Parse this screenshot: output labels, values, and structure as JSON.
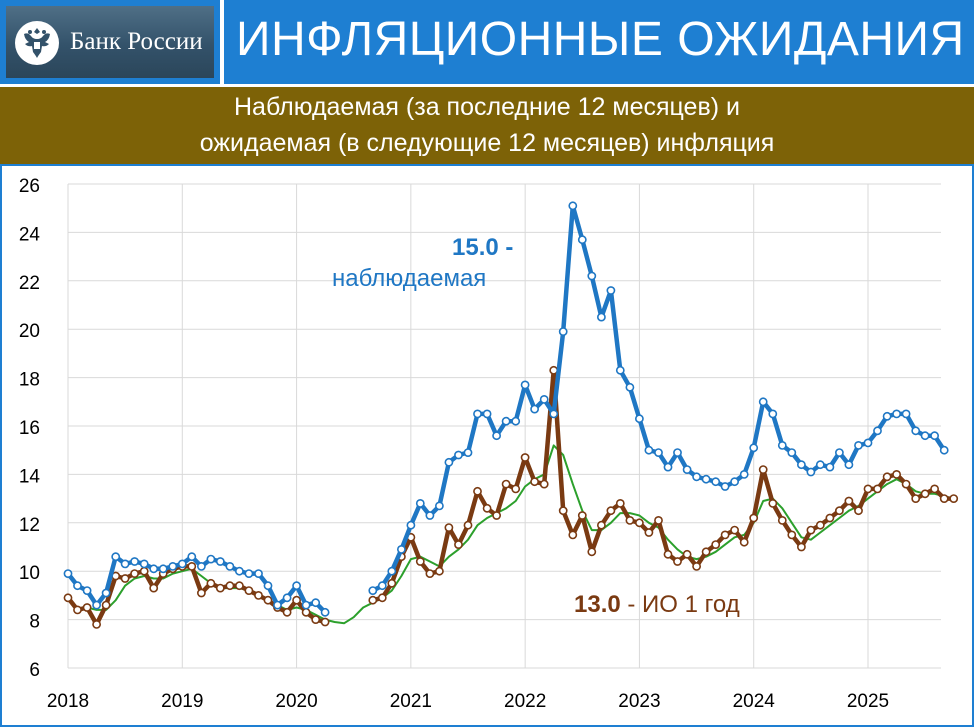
{
  "header": {
    "logo_text": "Банк России",
    "title": "ИНФЛЯЦИОННЫЕ ОЖИДАНИЯ",
    "subtitle_line1": "Наблюдаемая (за последние 12 месяцев) и",
    "subtitle_line2": "ожидаемая (в следующие 12 месяцев) инфляция"
  },
  "colors": {
    "header_bg": "#1e7fd2",
    "subtitle_bg": "#7d6207",
    "observed": "#1f77c4",
    "expected": "#7a3a12",
    "expected_smooth": "#2ca02c"
  },
  "icons": {
    "logo": "double-headed-eagle-icon"
  },
  "chart_data": {
    "type": "line",
    "x_ticks": [
      "2018",
      "2019",
      "2020",
      "2021",
      "2022",
      "2023",
      "2024",
      "2025"
    ],
    "y_ticks": [
      "6",
      "8",
      "10",
      "12",
      "14",
      "16",
      "18",
      "20",
      "22",
      "24",
      "26"
    ],
    "xlim": [
      2018.0,
      2025.75
    ],
    "ylim": [
      6,
      26
    ],
    "grid": true,
    "annotations": {
      "observed_value": "15.0",
      "observed_dash": " -",
      "observed_label": "наблюдаемая",
      "expected_value": "13.0",
      "expected_label": " - ИО 1 год"
    },
    "series": [
      {
        "key": "observed",
        "markers": true,
        "points": [
          [
            2018.0,
            9.9
          ],
          [
            2018.083,
            9.4
          ],
          [
            2018.167,
            9.2
          ],
          [
            2018.25,
            8.6
          ],
          [
            2018.333,
            9.1
          ],
          [
            2018.417,
            10.6
          ],
          [
            2018.5,
            10.3
          ],
          [
            2018.583,
            10.4
          ],
          [
            2018.667,
            10.3
          ],
          [
            2018.75,
            10.1
          ],
          [
            2018.833,
            10.1
          ],
          [
            2018.917,
            10.2
          ],
          [
            2019.0,
            10.3
          ],
          [
            2019.083,
            10.6
          ],
          [
            2019.167,
            10.2
          ],
          [
            2019.25,
            10.5
          ],
          [
            2019.333,
            10.4
          ],
          [
            2019.417,
            10.2
          ],
          [
            2019.5,
            10.0
          ],
          [
            2019.583,
            9.9
          ],
          [
            2019.667,
            9.9
          ],
          [
            2019.75,
            9.4
          ],
          [
            2019.833,
            8.6
          ],
          [
            2019.917,
            8.9
          ],
          [
            2020.0,
            9.4
          ],
          [
            2020.083,
            8.6
          ],
          [
            2020.167,
            8.7
          ],
          [
            2020.25,
            8.3
          ],
          [
            2020.667,
            9.2
          ],
          [
            2020.75,
            9.4
          ],
          [
            2020.833,
            10.0
          ],
          [
            2020.917,
            10.9
          ],
          [
            2021.0,
            11.9
          ],
          [
            2021.083,
            12.8
          ],
          [
            2021.167,
            12.3
          ],
          [
            2021.25,
            12.7
          ],
          [
            2021.333,
            14.5
          ],
          [
            2021.417,
            14.8
          ],
          [
            2021.5,
            14.9
          ],
          [
            2021.583,
            16.5
          ],
          [
            2021.667,
            16.5
          ],
          [
            2021.75,
            15.6
          ],
          [
            2021.833,
            16.2
          ],
          [
            2021.917,
            16.2
          ],
          [
            2022.0,
            17.7
          ],
          [
            2022.083,
            16.7
          ],
          [
            2022.167,
            17.1
          ],
          [
            2022.25,
            16.5
          ],
          [
            2022.333,
            19.9
          ],
          [
            2022.417,
            25.1
          ],
          [
            2022.5,
            23.7
          ],
          [
            2022.583,
            22.2
          ],
          [
            2022.667,
            20.5
          ],
          [
            2022.75,
            21.6
          ],
          [
            2022.833,
            18.3
          ],
          [
            2022.917,
            17.6
          ],
          [
            2023.0,
            16.3
          ],
          [
            2023.083,
            15.0
          ],
          [
            2023.167,
            14.9
          ],
          [
            2023.25,
            14.3
          ],
          [
            2023.333,
            14.9
          ],
          [
            2023.417,
            14.2
          ],
          [
            2023.5,
            13.9
          ],
          [
            2023.583,
            13.8
          ],
          [
            2023.667,
            13.7
          ],
          [
            2023.75,
            13.5
          ],
          [
            2023.833,
            13.7
          ],
          [
            2023.917,
            14.0
          ],
          [
            2024.0,
            15.1
          ],
          [
            2024.083,
            17.0
          ],
          [
            2024.167,
            16.5
          ],
          [
            2024.25,
            15.2
          ],
          [
            2024.333,
            14.9
          ],
          [
            2024.417,
            14.4
          ],
          [
            2024.5,
            14.1
          ],
          [
            2024.583,
            14.4
          ],
          [
            2024.667,
            14.3
          ],
          [
            2024.75,
            14.9
          ],
          [
            2024.833,
            14.4
          ],
          [
            2024.917,
            15.2
          ],
          [
            2025.0,
            15.3
          ],
          [
            2025.083,
            15.8
          ],
          [
            2025.167,
            16.4
          ],
          [
            2025.25,
            16.5
          ],
          [
            2025.333,
            16.5
          ],
          [
            2025.417,
            15.8
          ],
          [
            2025.5,
            15.6
          ],
          [
            2025.583,
            15.6
          ],
          [
            2025.667,
            15.0
          ]
        ]
      },
      {
        "key": "expected",
        "markers": true,
        "points": [
          [
            2018.0,
            8.9
          ],
          [
            2018.083,
            8.4
          ],
          [
            2018.167,
            8.5
          ],
          [
            2018.25,
            7.8
          ],
          [
            2018.333,
            8.6
          ],
          [
            2018.417,
            9.8
          ],
          [
            2018.5,
            9.7
          ],
          [
            2018.583,
            9.9
          ],
          [
            2018.667,
            10.0
          ],
          [
            2018.75,
            9.3
          ],
          [
            2018.833,
            9.9
          ],
          [
            2018.917,
            10.1
          ],
          [
            2019.0,
            10.2
          ],
          [
            2019.083,
            10.2
          ],
          [
            2019.167,
            9.1
          ],
          [
            2019.25,
            9.5
          ],
          [
            2019.333,
            9.3
          ],
          [
            2019.417,
            9.4
          ],
          [
            2019.5,
            9.4
          ],
          [
            2019.583,
            9.2
          ],
          [
            2019.667,
            9.0
          ],
          [
            2019.75,
            8.8
          ],
          [
            2019.833,
            8.5
          ],
          [
            2019.917,
            8.3
          ],
          [
            2020.0,
            8.8
          ],
          [
            2020.083,
            8.3
          ],
          [
            2020.167,
            8.0
          ],
          [
            2020.25,
            7.9
          ],
          [
            2020.667,
            8.8
          ],
          [
            2020.75,
            8.9
          ],
          [
            2020.833,
            9.5
          ],
          [
            2020.917,
            10.6
          ],
          [
            2021.0,
            11.4
          ],
          [
            2021.083,
            10.4
          ],
          [
            2021.167,
            9.9
          ],
          [
            2021.25,
            10.0
          ],
          [
            2021.333,
            11.8
          ],
          [
            2021.417,
            11.1
          ],
          [
            2021.5,
            11.9
          ],
          [
            2021.583,
            13.3
          ],
          [
            2021.667,
            12.6
          ],
          [
            2021.75,
            12.3
          ],
          [
            2021.833,
            13.6
          ],
          [
            2021.917,
            13.4
          ],
          [
            2022.0,
            14.7
          ],
          [
            2022.083,
            13.7
          ],
          [
            2022.167,
            13.6
          ],
          [
            2022.25,
            18.3
          ],
          [
            2022.333,
            12.5
          ],
          [
            2022.417,
            11.5
          ],
          [
            2022.5,
            12.3
          ],
          [
            2022.583,
            10.8
          ],
          [
            2022.667,
            11.9
          ],
          [
            2022.75,
            12.5
          ],
          [
            2022.833,
            12.8
          ],
          [
            2022.917,
            12.1
          ],
          [
            2023.0,
            12.0
          ],
          [
            2023.083,
            11.6
          ],
          [
            2023.167,
            12.1
          ],
          [
            2023.25,
            10.7
          ],
          [
            2023.333,
            10.4
          ],
          [
            2023.417,
            10.7
          ],
          [
            2023.5,
            10.2
          ],
          [
            2023.583,
            10.8
          ],
          [
            2023.667,
            11.1
          ],
          [
            2023.75,
            11.5
          ],
          [
            2023.833,
            11.7
          ],
          [
            2023.917,
            11.2
          ],
          [
            2024.0,
            12.2
          ],
          [
            2024.083,
            14.2
          ],
          [
            2024.167,
            12.8
          ],
          [
            2024.25,
            12.1
          ],
          [
            2024.333,
            11.5
          ],
          [
            2024.417,
            11.0
          ],
          [
            2024.5,
            11.7
          ],
          [
            2024.583,
            11.9
          ],
          [
            2024.667,
            12.2
          ],
          [
            2024.75,
            12.5
          ],
          [
            2024.833,
            12.9
          ],
          [
            2024.917,
            12.5
          ],
          [
            2025.0,
            13.4
          ],
          [
            2025.083,
            13.4
          ],
          [
            2025.167,
            13.9
          ],
          [
            2025.25,
            14.0
          ],
          [
            2025.333,
            13.6
          ],
          [
            2025.417,
            13.0
          ],
          [
            2025.5,
            13.2
          ],
          [
            2025.583,
            13.4
          ],
          [
            2025.667,
            13.0
          ],
          [
            2025.75,
            13.0
          ]
        ]
      },
      {
        "key": "expected_smooth",
        "markers": false,
        "points": [
          [
            2018.167,
            8.5
          ],
          [
            2018.25,
            8.4
          ],
          [
            2018.333,
            8.4
          ],
          [
            2018.417,
            8.8
          ],
          [
            2018.5,
            9.4
          ],
          [
            2018.583,
            9.7
          ],
          [
            2018.667,
            9.8
          ],
          [
            2018.75,
            9.7
          ],
          [
            2018.833,
            9.7
          ],
          [
            2018.917,
            9.9
          ],
          [
            2019.0,
            10.0
          ],
          [
            2019.083,
            10.1
          ],
          [
            2019.167,
            9.8
          ],
          [
            2019.25,
            9.5
          ],
          [
            2019.333,
            9.3
          ],
          [
            2019.417,
            9.3
          ],
          [
            2019.5,
            9.3
          ],
          [
            2019.583,
            9.2
          ],
          [
            2019.667,
            9.0
          ],
          [
            2019.75,
            8.8
          ],
          [
            2019.833,
            8.6
          ],
          [
            2019.917,
            8.4
          ],
          [
            2020.0,
            8.5
          ],
          [
            2020.083,
            8.4
          ],
          [
            2020.167,
            8.2
          ],
          [
            2020.25,
            8.0
          ],
          [
            2020.333,
            7.9
          ],
          [
            2020.417,
            7.85
          ],
          [
            2020.5,
            8.1
          ],
          [
            2020.583,
            8.5
          ],
          [
            2020.667,
            8.7
          ],
          [
            2020.75,
            8.9
          ],
          [
            2020.833,
            9.2
          ],
          [
            2020.917,
            9.8
          ],
          [
            2021.0,
            10.5
          ],
          [
            2021.083,
            10.6
          ],
          [
            2021.167,
            10.4
          ],
          [
            2021.25,
            10.2
          ],
          [
            2021.333,
            10.6
          ],
          [
            2021.417,
            10.9
          ],
          [
            2021.5,
            11.3
          ],
          [
            2021.583,
            11.9
          ],
          [
            2021.667,
            12.2
          ],
          [
            2021.75,
            12.4
          ],
          [
            2021.833,
            12.6
          ],
          [
            2021.917,
            12.9
          ],
          [
            2022.0,
            13.5
          ],
          [
            2022.083,
            13.8
          ],
          [
            2022.167,
            14.0
          ],
          [
            2022.25,
            15.2
          ],
          [
            2022.333,
            14.8
          ],
          [
            2022.417,
            13.6
          ],
          [
            2022.5,
            12.5
          ],
          [
            2022.583,
            11.7
          ],
          [
            2022.667,
            11.7
          ],
          [
            2022.75,
            12.0
          ],
          [
            2022.833,
            12.4
          ],
          [
            2022.917,
            12.4
          ],
          [
            2023.0,
            12.3
          ],
          [
            2023.083,
            12.0
          ],
          [
            2023.167,
            11.8
          ],
          [
            2023.25,
            11.3
          ],
          [
            2023.333,
            10.9
          ],
          [
            2023.417,
            10.6
          ],
          [
            2023.5,
            10.5
          ],
          [
            2023.583,
            10.6
          ],
          [
            2023.667,
            10.8
          ],
          [
            2023.75,
            11.1
          ],
          [
            2023.833,
            11.4
          ],
          [
            2023.917,
            11.5
          ],
          [
            2024.0,
            12.0
          ],
          [
            2024.083,
            12.9
          ],
          [
            2024.167,
            13.0
          ],
          [
            2024.25,
            12.6
          ],
          [
            2024.333,
            12.0
          ],
          [
            2024.417,
            11.4
          ],
          [
            2024.5,
            11.3
          ],
          [
            2024.583,
            11.6
          ],
          [
            2024.667,
            11.9
          ],
          [
            2024.75,
            12.2
          ],
          [
            2024.833,
            12.5
          ],
          [
            2024.917,
            12.7
          ],
          [
            2025.0,
            13.0
          ],
          [
            2025.083,
            13.3
          ],
          [
            2025.167,
            13.6
          ],
          [
            2025.25,
            13.8
          ],
          [
            2025.333,
            13.6
          ],
          [
            2025.417,
            13.3
          ],
          [
            2025.5,
            13.2
          ],
          [
            2025.583,
            13.2
          ],
          [
            2025.667,
            13.1
          ],
          [
            2025.75,
            13.0
          ]
        ]
      }
    ]
  }
}
